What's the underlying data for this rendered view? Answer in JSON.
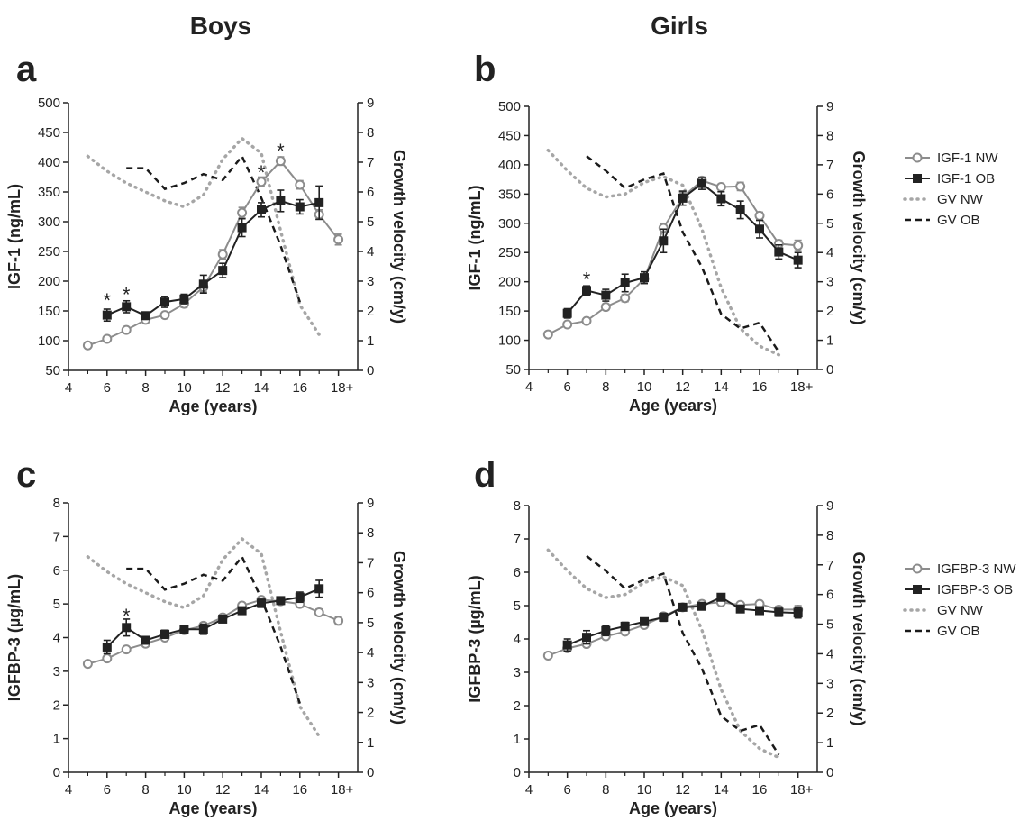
{
  "columns": [
    "Boys",
    "Girls"
  ],
  "legends": [
    {
      "entries": [
        {
          "label": "IGF-1 NW",
          "style": "nw"
        },
        {
          "label": "IGF-1 OB",
          "style": "ob"
        },
        {
          "label": "GV NW",
          "style": "gvnw"
        },
        {
          "label": "GV OB",
          "style": "gvob"
        }
      ]
    },
    {
      "entries": [
        {
          "label": "IGFBP-3 NW",
          "style": "nw"
        },
        {
          "label": "IGFBP-3 OB",
          "style": "ob"
        },
        {
          "label": "GV NW",
          "style": "gvnw"
        },
        {
          "label": "GV OB",
          "style": "gvob"
        }
      ]
    }
  ],
  "colors": {
    "nw": "#8c8c8c",
    "ob": "#222222",
    "gv_nw": "#a6a6a6",
    "gv_ob": "#1a1a1a"
  },
  "chart_data": [
    {
      "type": "line",
      "panel": "a",
      "xlabel": "Age (years)",
      "ylabel": "IGF-1 (ng/mL)",
      "y2label": "Growth velocity (cm/y)",
      "xlim": [
        4,
        19
      ],
      "xticks": [
        4,
        6,
        8,
        10,
        12,
        14,
        16,
        18
      ],
      "xtick_labels": [
        "4",
        "6",
        "8",
        "10",
        "12",
        "14",
        "16",
        "18+"
      ],
      "ylim": [
        50,
        500
      ],
      "yticks": [
        50,
        100,
        150,
        200,
        250,
        300,
        350,
        400,
        450,
        500
      ],
      "y2lim": [
        0,
        9
      ],
      "y2ticks": [
        0,
        1,
        2,
        3,
        4,
        5,
        6,
        7,
        8,
        9
      ],
      "series": [
        {
          "name": "IGF-1 NW",
          "axis": "left",
          "style": "nw",
          "x": [
            5,
            6,
            7,
            8,
            9,
            10,
            11,
            12,
            13,
            14,
            15,
            16,
            17,
            18
          ],
          "y": [
            92,
            103,
            118,
            135,
            143,
            162,
            190,
            245,
            315,
            367,
            402,
            362,
            312,
            270
          ],
          "err": [
            4,
            4,
            4,
            4,
            5,
            6,
            8,
            8,
            9,
            8,
            7,
            7,
            8,
            9
          ]
        },
        {
          "name": "IGF-1 OB",
          "axis": "left",
          "style": "ob",
          "x": [
            6,
            7,
            8,
            9,
            10,
            11,
            12,
            13,
            14,
            15,
            16,
            17
          ],
          "y": [
            143,
            157,
            142,
            165,
            170,
            195,
            218,
            290,
            320,
            335,
            325,
            332
          ],
          "err": [
            10,
            10,
            5,
            9,
            8,
            15,
            12,
            15,
            12,
            18,
            12,
            28
          ]
        },
        {
          "name": "GV NW",
          "axis": "right",
          "style": "gvnw",
          "x": [
            5,
            6,
            7,
            8,
            9,
            10,
            11,
            12,
            13,
            14,
            15,
            16,
            17
          ],
          "y": [
            7.2,
            6.7,
            6.3,
            6.0,
            5.7,
            5.5,
            5.9,
            7.1,
            7.8,
            7.3,
            4.7,
            2.2,
            1.2
          ]
        },
        {
          "name": "GV OB",
          "axis": "right",
          "style": "gvob",
          "x": [
            7,
            8,
            9,
            10,
            11,
            12,
            13,
            14,
            15,
            16
          ],
          "y": [
            6.8,
            6.8,
            6.1,
            6.3,
            6.6,
            6.4,
            7.2,
            5.8,
            4.2,
            2.3
          ]
        }
      ],
      "annotations": [
        {
          "x": 6,
          "y": 168,
          "text": "*"
        },
        {
          "x": 7,
          "y": 178,
          "text": "*"
        },
        {
          "x": 14,
          "y": 383,
          "text": "*"
        },
        {
          "x": 15,
          "y": 420,
          "text": "*"
        }
      ]
    },
    {
      "type": "line",
      "panel": "b",
      "xlabel": "Age (years)",
      "ylabel": "IGF-1 (ng/mL)",
      "y2label": "Growth velocity (cm/y)",
      "xlim": [
        4,
        19
      ],
      "xticks": [
        4,
        6,
        8,
        10,
        12,
        14,
        16,
        18
      ],
      "xtick_labels": [
        "4",
        "6",
        "8",
        "10",
        "12",
        "14",
        "16",
        "18+"
      ],
      "ylim": [
        50,
        500
      ],
      "yticks": [
        50,
        100,
        150,
        200,
        250,
        300,
        350,
        400,
        450,
        500
      ],
      "y2lim": [
        0,
        9
      ],
      "y2ticks": [
        0,
        1,
        2,
        3,
        4,
        5,
        6,
        7,
        8,
        9
      ],
      "series": [
        {
          "name": "IGF-1 NW",
          "axis": "left",
          "style": "nw",
          "x": [
            5,
            6,
            7,
            8,
            9,
            10,
            11,
            12,
            13,
            14,
            15,
            16,
            17,
            18
          ],
          "y": [
            110,
            127,
            133,
            157,
            172,
            205,
            292,
            345,
            373,
            362,
            363,
            313,
            265,
            262
          ],
          "err": [
            4,
            4,
            4,
            5,
            6,
            8,
            8,
            8,
            6,
            5,
            7,
            6,
            6,
            9
          ]
        },
        {
          "name": "IGF-1 OB",
          "axis": "left",
          "style": "ob",
          "x": [
            6,
            7,
            8,
            9,
            10,
            11,
            12,
            13,
            14,
            15,
            16,
            17,
            18
          ],
          "y": [
            146,
            185,
            177,
            198,
            207,
            270,
            343,
            368,
            342,
            323,
            290,
            251,
            237
          ],
          "err": [
            8,
            8,
            10,
            15,
            10,
            20,
            12,
            10,
            12,
            15,
            15,
            12,
            13
          ]
        },
        {
          "name": "GV NW",
          "axis": "right",
          "style": "gvnw",
          "x": [
            5,
            6,
            7,
            8,
            9,
            10,
            11,
            12,
            13,
            14,
            15,
            16,
            17
          ],
          "y": [
            7.5,
            6.8,
            6.2,
            5.9,
            6.0,
            6.4,
            6.6,
            6.3,
            4.8,
            2.8,
            1.4,
            0.8,
            0.5
          ]
        },
        {
          "name": "GV OB",
          "axis": "right",
          "style": "gvob",
          "x": [
            7,
            8,
            9,
            10,
            11,
            12,
            13,
            14,
            15,
            16,
            17
          ],
          "y": [
            7.3,
            6.8,
            6.2,
            6.5,
            6.7,
            4.7,
            3.5,
            1.9,
            1.4,
            1.6,
            0.6
          ]
        }
      ],
      "annotations": [
        {
          "x": 7,
          "y": 205,
          "text": "*"
        }
      ]
    },
    {
      "type": "line",
      "panel": "c",
      "xlabel": "Age (years)",
      "ylabel": "IGFBP-3 (µg/mL)",
      "y2label": "Growth velocity (cm/y)",
      "xlim": [
        4,
        19
      ],
      "xticks": [
        4,
        6,
        8,
        10,
        12,
        14,
        16,
        18
      ],
      "xtick_labels": [
        "4",
        "6",
        "8",
        "10",
        "12",
        "14",
        "16",
        "18+"
      ],
      "ylim": [
        0,
        8
      ],
      "yticks": [
        0,
        1,
        2,
        3,
        4,
        5,
        6,
        7,
        8
      ],
      "y2lim": [
        0,
        9
      ],
      "y2ticks": [
        0,
        1,
        2,
        3,
        4,
        5,
        6,
        7,
        8,
        9
      ],
      "series": [
        {
          "name": "IGFBP-3 NW",
          "axis": "left",
          "style": "nw",
          "x": [
            5,
            6,
            7,
            8,
            9,
            10,
            11,
            12,
            13,
            14,
            15,
            16,
            17,
            18
          ],
          "y": [
            3.22,
            3.38,
            3.65,
            3.82,
            4.0,
            4.22,
            4.35,
            4.6,
            4.95,
            5.12,
            5.08,
            5.0,
            4.75,
            4.5
          ],
          "err": [
            0.05,
            0.06,
            0.07,
            0.07,
            0.08,
            0.08,
            0.09,
            0.08,
            0.08,
            0.08,
            0.09,
            0.1,
            0.1,
            0.12
          ]
        },
        {
          "name": "IGFBP-3 OB",
          "axis": "left",
          "style": "ob",
          "x": [
            6,
            7,
            8,
            9,
            10,
            11,
            12,
            13,
            14,
            15,
            16,
            17
          ],
          "y": [
            3.72,
            4.3,
            3.92,
            4.1,
            4.25,
            4.25,
            4.55,
            4.8,
            5.02,
            5.1,
            5.2,
            5.45
          ],
          "err": [
            0.2,
            0.25,
            0.1,
            0.12,
            0.1,
            0.15,
            0.1,
            0.1,
            0.12,
            0.1,
            0.15,
            0.25
          ]
        },
        {
          "name": "GV NW",
          "axis": "right",
          "style": "gvnw",
          "x": [
            5,
            6,
            7,
            8,
            9,
            10,
            11,
            12,
            13,
            14,
            15,
            16,
            17
          ],
          "y": [
            7.2,
            6.7,
            6.3,
            6.0,
            5.7,
            5.5,
            5.9,
            7.1,
            7.8,
            7.3,
            4.7,
            2.2,
            1.2
          ]
        },
        {
          "name": "GV OB",
          "axis": "right",
          "style": "gvob",
          "x": [
            7,
            8,
            9,
            10,
            11,
            12,
            13,
            14,
            15,
            16
          ],
          "y": [
            6.8,
            6.8,
            6.1,
            6.3,
            6.6,
            6.4,
            7.2,
            5.8,
            4.2,
            2.3
          ]
        }
      ],
      "annotations": [
        {
          "x": 7,
          "y": 4.65,
          "text": "*"
        }
      ]
    },
    {
      "type": "line",
      "panel": "d",
      "xlabel": "Age (years)",
      "ylabel": "IGFBP-3 (µg/mL)",
      "y2label": "Growth velocity (cm/y)",
      "xlim": [
        4,
        19
      ],
      "xticks": [
        4,
        6,
        8,
        10,
        12,
        14,
        16,
        18
      ],
      "xtick_labels": [
        "4",
        "6",
        "8",
        "10",
        "12",
        "14",
        "16",
        "18+"
      ],
      "ylim": [
        0,
        8
      ],
      "yticks": [
        0,
        1,
        2,
        3,
        4,
        5,
        6,
        7,
        8
      ],
      "y2lim": [
        0,
        9
      ],
      "y2ticks": [
        0,
        1,
        2,
        3,
        4,
        5,
        6,
        7,
        8,
        9
      ],
      "series": [
        {
          "name": "IGFBP-3 NW",
          "axis": "left",
          "style": "nw",
          "x": [
            5,
            6,
            7,
            8,
            9,
            10,
            11,
            12,
            13,
            14,
            15,
            16,
            17,
            18
          ],
          "y": [
            3.5,
            3.72,
            3.85,
            4.08,
            4.22,
            4.42,
            4.68,
            4.95,
            5.05,
            5.1,
            5.02,
            5.05,
            4.88,
            4.88
          ],
          "err": [
            0.05,
            0.06,
            0.07,
            0.07,
            0.07,
            0.08,
            0.08,
            0.08,
            0.07,
            0.07,
            0.07,
            0.08,
            0.1,
            0.12
          ]
        },
        {
          "name": "IGFBP-3 OB",
          "axis": "left",
          "style": "ob",
          "x": [
            6,
            7,
            8,
            9,
            10,
            11,
            12,
            13,
            14,
            15,
            16,
            17,
            18
          ],
          "y": [
            3.82,
            4.05,
            4.25,
            4.38,
            4.52,
            4.65,
            4.95,
            4.98,
            5.25,
            4.9,
            4.85,
            4.8,
            4.78
          ],
          "err": [
            0.18,
            0.2,
            0.15,
            0.12,
            0.1,
            0.12,
            0.1,
            0.1,
            0.1,
            0.1,
            0.1,
            0.12,
            0.15
          ]
        },
        {
          "name": "GV NW",
          "axis": "right",
          "style": "gvnw",
          "x": [
            5,
            6,
            7,
            8,
            9,
            10,
            11,
            12,
            13,
            14,
            15,
            16,
            17
          ],
          "y": [
            7.5,
            6.8,
            6.2,
            5.9,
            6.0,
            6.4,
            6.6,
            6.3,
            4.8,
            2.8,
            1.4,
            0.8,
            0.5
          ]
        },
        {
          "name": "GV OB",
          "axis": "right",
          "style": "gvob",
          "x": [
            7,
            8,
            9,
            10,
            11,
            12,
            13,
            14,
            15,
            16,
            17
          ],
          "y": [
            7.3,
            6.8,
            6.2,
            6.5,
            6.7,
            4.7,
            3.5,
            1.9,
            1.4,
            1.6,
            0.6
          ]
        }
      ],
      "annotations": []
    }
  ]
}
